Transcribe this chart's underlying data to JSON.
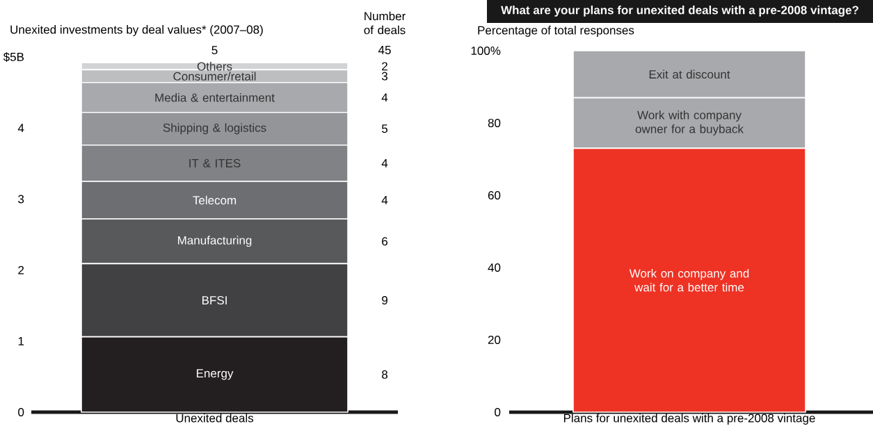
{
  "chart_data": [
    {
      "type": "bar",
      "stacked": true,
      "title": "Unexited investments by deal values* (2007–08)",
      "categories": [
        "Unexited deals"
      ],
      "series": [
        {
          "name": "Energy",
          "color": "#231f20",
          "values": [
            1.06
          ]
        },
        {
          "name": "BFSI",
          "color": "#414042",
          "values": [
            1.03
          ]
        },
        {
          "name": "Manufacturing",
          "color": "#58595b",
          "values": [
            0.63
          ]
        },
        {
          "name": "Telecom",
          "color": "#6d6e71",
          "values": [
            0.53
          ]
        },
        {
          "name": "IT & ITES",
          "color": "#808285",
          "values": [
            0.51
          ]
        },
        {
          "name": "Shipping & logistics",
          "color": "#939598",
          "values": [
            0.46
          ]
        },
        {
          "name": "Media & entertainment",
          "color": "#a7a9ac",
          "values": [
            0.42
          ]
        },
        {
          "name": "Consumer/retail",
          "color": "#bcbec0",
          "values": [
            0.18
          ]
        },
        {
          "name": "Others",
          "color": "#d1d3d4",
          "values": [
            0.1
          ]
        }
      ],
      "ylim": [
        0,
        5
      ],
      "yticks": [
        0,
        1,
        2,
        3,
        4,
        {
          "value": 5,
          "label": "$5B"
        }
      ],
      "totals": [
        "5"
      ],
      "annotations": [
        "Number of deals",
        "45",
        "8",
        "9",
        "6",
        "4",
        "4",
        "5",
        "4",
        "3",
        "2"
      ]
    },
    {
      "type": "bar",
      "stacked": true,
      "title": "What are your plans for unexited deals with a pre-2008 vintage?",
      "ylabel": "Percentage of total responses",
      "categories": [
        "Plans for unexited deals with a pre-2008 vintage"
      ],
      "series": [
        {
          "name": "Work on company and wait for a better time",
          "color": "#ee3224",
          "values": [
            73
          ]
        },
        {
          "name": "Work with company owner for a buyback",
          "color": "#a7a9ac",
          "values": [
            14
          ]
        },
        {
          "name": "Exit at discount",
          "color": "#a7a9ac",
          "values": [
            13
          ]
        }
      ],
      "ylim": [
        0,
        100
      ],
      "yticks": [
        0,
        20,
        40,
        60,
        80,
        {
          "value": 100,
          "label": "100%"
        }
      ]
    }
  ]
}
